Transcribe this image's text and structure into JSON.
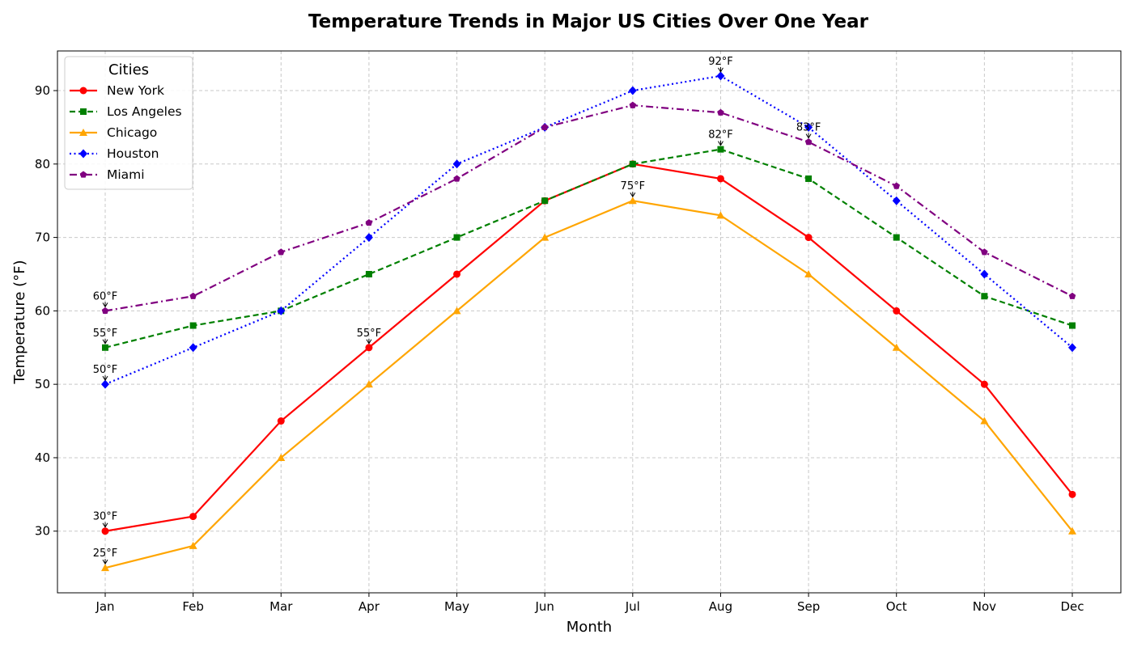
{
  "chart_data": {
    "type": "line",
    "title": "Temperature Trends in Major US Cities Over One Year",
    "xlabel": "Month",
    "ylabel": "Temperature (°F)",
    "categories": [
      "Jan",
      "Feb",
      "Mar",
      "Apr",
      "May",
      "Jun",
      "Jul",
      "Aug",
      "Sep",
      "Oct",
      "Nov",
      "Dec"
    ],
    "ylim": [
      21.6,
      95.4
    ],
    "yticks": [
      30,
      40,
      50,
      60,
      70,
      80,
      90
    ],
    "grid": true,
    "legend": {
      "title": "Cities",
      "placement": "top-left"
    },
    "series": [
      {
        "name": "New York",
        "color": "#ff0000",
        "marker": "circle",
        "dash": "solid",
        "values": [
          30,
          32,
          45,
          55,
          65,
          75,
          80,
          78,
          70,
          60,
          50,
          35
        ]
      },
      {
        "name": "Los Angeles",
        "color": "#008000",
        "marker": "square",
        "dash": "dashed",
        "values": [
          55,
          58,
          60,
          65,
          70,
          75,
          80,
          82,
          78,
          70,
          62,
          58
        ]
      },
      {
        "name": "Chicago",
        "color": "#ffa500",
        "marker": "triangle",
        "dash": "solid",
        "values": [
          25,
          28,
          40,
          50,
          60,
          70,
          75,
          73,
          65,
          55,
          45,
          30
        ]
      },
      {
        "name": "Houston",
        "color": "#0000ff",
        "marker": "diamond",
        "dash": "dotted",
        "values": [
          50,
          55,
          60,
          70,
          80,
          85,
          90,
          92,
          85,
          75,
          65,
          55
        ]
      },
      {
        "name": "Miami",
        "color": "#800080",
        "marker": "pentagon",
        "dash": "dashdot",
        "values": [
          60,
          62,
          68,
          72,
          78,
          85,
          88,
          87,
          83,
          77,
          68,
          62
        ]
      }
    ],
    "annotations": [
      {
        "month": "Jan",
        "value": 30,
        "text": "30°F"
      },
      {
        "month": "Jan",
        "value": 55,
        "text": "55°F"
      },
      {
        "month": "Jan",
        "value": 25,
        "text": "25°F"
      },
      {
        "month": "Jan",
        "value": 50,
        "text": "50°F"
      },
      {
        "month": "Jan",
        "value": 60,
        "text": "60°F"
      },
      {
        "month": "Apr",
        "value": 55,
        "text": "55°F"
      },
      {
        "month": "Jul",
        "value": 75,
        "text": "75°F"
      },
      {
        "month": "Aug",
        "value": 82,
        "text": "82°F"
      },
      {
        "month": "Aug",
        "value": 92,
        "text": "92°F"
      },
      {
        "month": "Sep",
        "value": 83,
        "text": "83°F"
      }
    ]
  }
}
